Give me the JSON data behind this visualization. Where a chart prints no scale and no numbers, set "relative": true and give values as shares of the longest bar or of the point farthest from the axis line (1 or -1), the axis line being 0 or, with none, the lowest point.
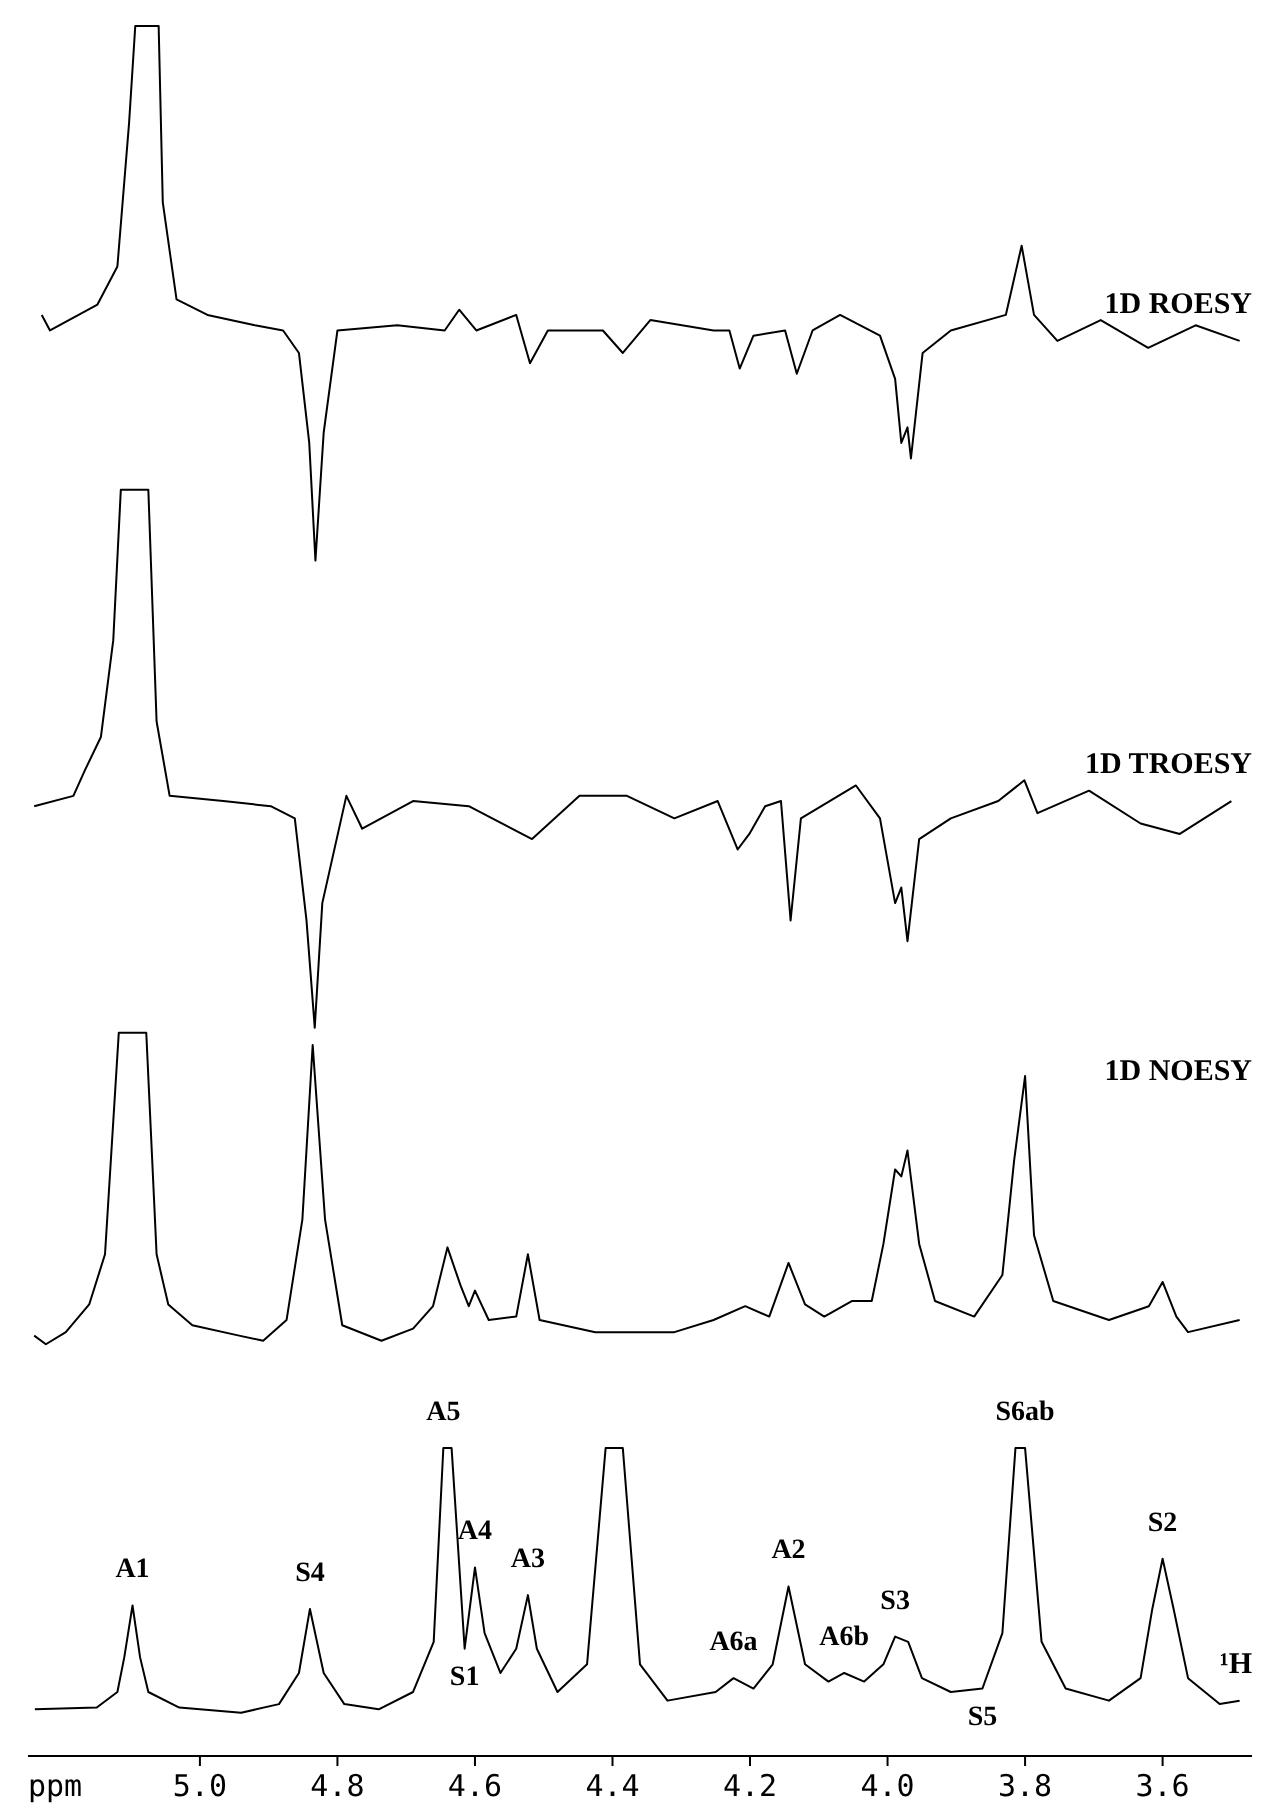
{
  "chart_data": {
    "type": "line",
    "xlabel": "ppm",
    "relative": true,
    "xlim": [
      5.25,
      3.47
    ],
    "xticks": [
      {
        "value": 5.0,
        "label": "5.0"
      },
      4.8,
      4.6,
      4.4,
      4.2,
      {
        "value": 4.0,
        "label": "4.0"
      },
      3.8,
      3.6
    ],
    "tick_labels": "x",
    "series": [
      {
        "name": "1D ROESY",
        "color": "#000000",
        "x": [
          5.23,
          5.218,
          5.149,
          5.12,
          5.103,
          5.094,
          5.06,
          5.054,
          5.034,
          4.989,
          4.92,
          4.879,
          4.856,
          4.841,
          4.832,
          4.82,
          4.8,
          4.713,
          4.644,
          4.623,
          4.598,
          4.54,
          4.52,
          4.494,
          4.414,
          4.385,
          4.345,
          4.253,
          4.23,
          4.215,
          4.195,
          4.149,
          4.132,
          4.109,
          4.069,
          4.011,
          3.989,
          3.98,
          3.971,
          3.966,
          3.949,
          3.908,
          3.828,
          3.805,
          3.787,
          3.753,
          3.69,
          3.621,
          3.552,
          3.488
        ],
        "values": [
          0.833,
          0.824,
          0.839,
          0.861,
          0.944,
          1,
          1,
          0.898,
          0.842,
          0.833,
          0.827,
          0.824,
          0.811,
          0.759,
          0.691,
          0.765,
          0.824,
          0.827,
          0.824,
          0.836,
          0.824,
          0.833,
          0.805,
          0.824,
          0.824,
          0.811,
          0.83,
          0.824,
          0.824,
          0.802,
          0.821,
          0.824,
          0.799,
          0.824,
          0.833,
          0.821,
          0.796,
          0.759,
          0.768,
          0.75,
          0.811,
          0.824,
          0.833,
          0.873,
          0.833,
          0.818,
          0.83,
          0.814,
          0.827,
          0.818
        ]
      },
      {
        "name": "1D TROESY",
        "color": "#000000",
        "x": [
          5.241,
          5.184,
          5.167,
          5.144,
          5.126,
          5.115,
          5.075,
          5.063,
          5.044,
          4.966,
          4.897,
          4.862,
          4.845,
          4.833,
          4.822,
          4.787,
          4.764,
          4.69,
          4.609,
          4.517,
          4.448,
          4.379,
          4.31,
          4.247,
          4.218,
          4.201,
          4.178,
          4.155,
          4.141,
          4.126,
          4.046,
          4.011,
          3.989,
          3.98,
          3.971,
          3.954,
          3.908,
          3.839,
          3.801,
          3.782,
          3.707,
          3.632,
          3.575,
          3.5
        ],
        "values": [
          0.549,
          0.555,
          0.57,
          0.589,
          0.645,
          0.732,
          0.732,
          0.598,
          0.555,
          0.552,
          0.549,
          0.542,
          0.483,
          0.421,
          0.493,
          0.555,
          0.536,
          0.552,
          0.549,
          0.53,
          0.555,
          0.555,
          0.542,
          0.552,
          0.524,
          0.533,
          0.549,
          0.552,
          0.483,
          0.542,
          0.561,
          0.542,
          0.493,
          0.502,
          0.471,
          0.53,
          0.542,
          0.552,
          0.564,
          0.545,
          0.558,
          0.539,
          0.533,
          0.552
        ]
      },
      {
        "name": "1D NOESY",
        "color": "#000000",
        "x": [
          5.241,
          5.224,
          5.195,
          5.161,
          5.138,
          5.118,
          5.078,
          5.063,
          5.046,
          5.011,
          4.943,
          4.908,
          4.874,
          4.851,
          4.836,
          4.818,
          4.793,
          4.736,
          4.69,
          4.661,
          4.64,
          4.621,
          4.609,
          4.6,
          4.58,
          4.54,
          4.523,
          4.506,
          4.425,
          4.31,
          4.253,
          4.207,
          4.172,
          4.144,
          4.12,
          4.092,
          4.052,
          4.023,
          4.006,
          3.989,
          3.98,
          3.971,
          3.954,
          3.931,
          3.874,
          3.833,
          3.816,
          3.8,
          3.787,
          3.759,
          3.678,
          3.62,
          3.6,
          3.58,
          3.563,
          3.488
        ],
        "values": [
          0.243,
          0.238,
          0.245,
          0.261,
          0.29,
          0.418,
          0.418,
          0.29,
          0.261,
          0.249,
          0.243,
          0.24,
          0.252,
          0.31,
          0.411,
          0.31,
          0.249,
          0.24,
          0.247,
          0.26,
          0.294,
          0.272,
          0.26,
          0.269,
          0.252,
          0.254,
          0.29,
          0.252,
          0.245,
          0.245,
          0.252,
          0.26,
          0.254,
          0.285,
          0.261,
          0.254,
          0.263,
          0.263,
          0.296,
          0.339,
          0.335,
          0.35,
          0.296,
          0.263,
          0.254,
          0.278,
          0.344,
          0.393,
          0.301,
          0.263,
          0.252,
          0.26,
          0.274,
          0.254,
          0.245,
          0.252
        ]
      },
      {
        "name": "¹H",
        "color": "#000000",
        "x": [
          5.24,
          5.15,
          5.12,
          5.11,
          5.098,
          5.087,
          5.075,
          5.03,
          4.94,
          4.885,
          4.856,
          4.84,
          4.82,
          4.79,
          4.74,
          4.69,
          4.66,
          4.646,
          4.634,
          4.615,
          4.6,
          4.586,
          4.563,
          4.54,
          4.523,
          4.51,
          4.48,
          4.437,
          4.41,
          4.385,
          4.36,
          4.32,
          4.25,
          4.224,
          4.195,
          4.167,
          4.144,
          4.12,
          4.086,
          4.063,
          4.034,
          4.006,
          3.989,
          3.97,
          3.95,
          3.908,
          3.862,
          3.833,
          3.814,
          3.8,
          3.776,
          3.741,
          3.678,
          3.632,
          3.615,
          3.6,
          3.584,
          3.563,
          3.517,
          3.488
        ],
        "values": [
          0.027,
          0.028,
          0.037,
          0.057,
          0.087,
          0.057,
          0.037,
          0.028,
          0.025,
          0.03,
          0.048,
          0.085,
          0.048,
          0.03,
          0.027,
          0.037,
          0.066,
          0.178,
          0.178,
          0.062,
          0.109,
          0.071,
          0.048,
          0.062,
          0.093,
          0.062,
          0.037,
          0.053,
          0.178,
          0.178,
          0.053,
          0.032,
          0.037,
          0.045,
          0.039,
          0.053,
          0.098,
          0.053,
          0.043,
          0.048,
          0.043,
          0.053,
          0.069,
          0.066,
          0.045,
          0.037,
          0.039,
          0.071,
          0.178,
          0.178,
          0.066,
          0.039,
          0.032,
          0.045,
          0.085,
          0.114,
          0.085,
          0.045,
          0.03,
          0.032
        ]
      }
    ],
    "annotations": [
      {
        "text": "A1",
        "x": 5.098,
        "y": 0.087
      },
      {
        "text": "S4",
        "x": 4.84,
        "y": 0.085
      },
      {
        "text": "A5",
        "x": 4.646,
        "y": 0.178
      },
      {
        "text": "A4",
        "x": 4.6,
        "y": 0.109
      },
      {
        "text": "S1",
        "x": 4.615,
        "y": 0.062
      },
      {
        "text": "A3",
        "x": 4.523,
        "y": 0.093
      },
      {
        "text": "A6a",
        "x": 4.224,
        "y": 0.045
      },
      {
        "text": "A2",
        "x": 4.144,
        "y": 0.098
      },
      {
        "text": "A6b",
        "x": 4.063,
        "y": 0.048
      },
      {
        "text": "S3",
        "x": 3.989,
        "y": 0.069
      },
      {
        "text": "S6ab",
        "x": 3.8,
        "y": 0.178
      },
      {
        "text": "S5",
        "x": 3.862,
        "y": 0.039
      },
      {
        "text": "S2",
        "x": 3.6,
        "y": 0.114
      }
    ]
  }
}
